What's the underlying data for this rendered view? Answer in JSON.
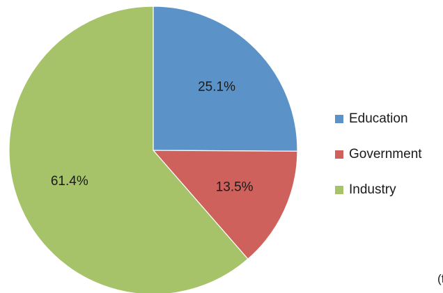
{
  "chart_data": {
    "type": "pie",
    "categories": [
      "Education",
      "Government",
      "Industry"
    ],
    "values": [
      25.1,
      13.5,
      61.4
    ],
    "data_labels": [
      "25.1%",
      "13.5%",
      "61.4%"
    ],
    "colors": [
      "#5b93c8",
      "#cf615c",
      "#a7c36a"
    ],
    "start_angle": "12 o'clock",
    "direction": "clockwise",
    "legend_position": "right"
  },
  "footnote": "(f"
}
